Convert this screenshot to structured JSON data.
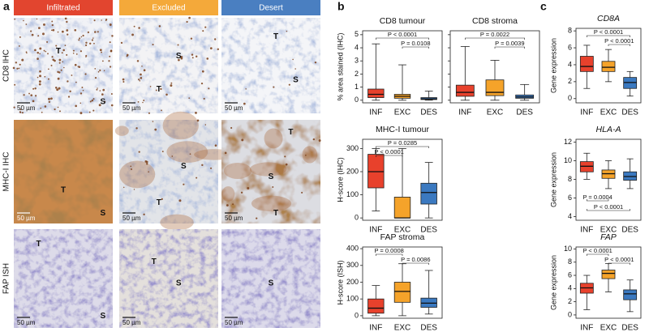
{
  "panel_labels": [
    "a",
    "b",
    "c"
  ],
  "histology": {
    "columns": [
      {
        "label": "Infiltrated",
        "color": "#e2452f"
      },
      {
        "label": "Excluded",
        "color": "#f4a93a"
      },
      {
        "label": "Desert",
        "color": "#4a7fc1"
      }
    ],
    "rows": [
      "CD8 IHC",
      "MHC-I IHC",
      "FAP ISH"
    ],
    "scale_bar": "50 µm",
    "images": [
      [
        [
          "T",
          "S"
        ],
        [
          "S",
          "T"
        ],
        [
          "T",
          "S"
        ]
      ],
      [
        [
          "T",
          "S"
        ],
        [
          "S",
          "T"
        ],
        [
          "T",
          "S",
          "T"
        ]
      ],
      [
        [
          "T",
          "S"
        ],
        [
          "T",
          "S"
        ],
        [
          "S"
        ]
      ]
    ]
  },
  "chart_data": [
    {
      "type": "box",
      "title": "CD8 tumour",
      "y_label": "% area stained (IHC)",
      "categories": [
        "INF",
        "EXC",
        "DES"
      ],
      "colors": [
        "#e8412c",
        "#f5a32a",
        "#3b79c0"
      ],
      "boxes": [
        {
          "min": 0,
          "q1": 0.2,
          "median": 0.45,
          "q3": 0.85,
          "max": 4.3
        },
        {
          "min": 0,
          "q1": 0.15,
          "median": 0.3,
          "q3": 0.45,
          "max": 2.7
        },
        {
          "min": 0,
          "q1": 0.05,
          "median": 0.1,
          "q3": 0.2,
          "max": 0.7
        }
      ],
      "ylim": [
        -0.2,
        5.3
      ],
      "yticks": [
        0,
        1,
        2,
        3,
        4,
        5
      ],
      "annotation_side": "top",
      "annotations": [
        {
          "text": "P < 0.0001",
          "from": 0,
          "to": 2
        },
        {
          "text": "P = 0.0108",
          "from": 1,
          "to": 2
        }
      ]
    },
    {
      "type": "box",
      "title": "CD8 stroma",
      "categories": [
        "INF",
        "EXC",
        "DES"
      ],
      "colors": [
        "#e8412c",
        "#f5a32a",
        "#3b79c0"
      ],
      "boxes": [
        {
          "min": 0,
          "q1": 0.3,
          "median": 0.6,
          "q3": 1.15,
          "max": 4.1
        },
        {
          "min": 0,
          "q1": 0.35,
          "median": 0.6,
          "q3": 1.55,
          "max": 3.05
        },
        {
          "min": 0,
          "q1": 0.15,
          "median": 0.25,
          "q3": 0.4,
          "max": 1.2
        }
      ],
      "ylim": [
        -0.2,
        5.3
      ],
      "yticks": [
        0,
        1,
        2,
        3,
        4,
        5
      ],
      "tick_labels": false,
      "annotation_side": "top",
      "annotations": [
        {
          "text": "P = 0.0022",
          "from": 0,
          "to": 2
        },
        {
          "text": "P = 0.0039",
          "from": 1,
          "to": 2
        }
      ]
    },
    {
      "type": "box",
      "title": "MHC-I tumour",
      "y_label": "H-score (IHC)",
      "categories": [
        "INF",
        "EXC",
        "DES"
      ],
      "colors": [
        "#e8412c",
        "#f5a32a",
        "#3b79c0"
      ],
      "boxes": [
        {
          "min": 30,
          "q1": 130,
          "median": 200,
          "q3": 275,
          "max": 300
        },
        {
          "min": 0,
          "q1": 0,
          "median": 0,
          "q3": 90,
          "max": 300
        },
        {
          "min": 0,
          "q1": 60,
          "median": 110,
          "q3": 150,
          "max": 240
        }
      ],
      "ylim": [
        -10,
        340
      ],
      "yticks": [
        0,
        100,
        200,
        300
      ],
      "annotation_side": "top",
      "annotations": [
        {
          "text": "P = 0.0285",
          "from": 0,
          "to": 2
        },
        {
          "text": "P < 0.0001",
          "from": 0,
          "to": 1
        }
      ]
    },
    {
      "type": "box",
      "title": "FAP stroma",
      "y_label": "H-score (ISH)",
      "categories": [
        "INF",
        "EXC",
        "DES"
      ],
      "colors": [
        "#e8412c",
        "#f5a32a",
        "#3b79c0"
      ],
      "boxes": [
        {
          "min": 0,
          "q1": 15,
          "median": 45,
          "q3": 100,
          "max": 180
        },
        {
          "min": 0,
          "q1": 80,
          "median": 145,
          "q3": 200,
          "max": 310
        },
        {
          "min": 10,
          "q1": 50,
          "median": 75,
          "q3": 105,
          "max": 270
        }
      ],
      "ylim": [
        -15,
        410
      ],
      "yticks": [
        0,
        100,
        200,
        300,
        400
      ],
      "annotation_side": "top",
      "annotations": [
        {
          "text": "P = 0.0008",
          "from": 0,
          "to": 1
        },
        {
          "text": "P = 0.0086",
          "from": 1,
          "to": 2
        }
      ]
    },
    {
      "type": "box",
      "title": "CD8A",
      "title_style": "italic",
      "y_label": "Gene expression",
      "categories": [
        "INF",
        "EXC",
        "DES"
      ],
      "colors": [
        "#e8412c",
        "#f5a32a",
        "#3b79c0"
      ],
      "boxes": [
        {
          "min": 1.2,
          "q1": 3.2,
          "median": 3.8,
          "q3": 5.0,
          "max": 6.3
        },
        {
          "min": 2.0,
          "q1": 3.2,
          "median": 3.7,
          "q3": 4.4,
          "max": 5.8
        },
        {
          "min": 0.3,
          "q1": 1.2,
          "median": 1.9,
          "q3": 2.5,
          "max": 3.2
        }
      ],
      "ylim": [
        -0.5,
        8.3
      ],
      "yticks": [
        0,
        2,
        4,
        6,
        8
      ],
      "annotation_side": "top",
      "annotations": [
        {
          "text": "P < 0.0001",
          "from": 0,
          "to": 2
        },
        {
          "text": "P < 0.0001",
          "from": 1,
          "to": 2
        }
      ]
    },
    {
      "type": "box",
      "title": "HLA-A",
      "title_style": "italic",
      "y_label": "Gene expression",
      "categories": [
        "INF",
        "EXC",
        "DES"
      ],
      "colors": [
        "#e8412c",
        "#f5a32a",
        "#3b79c0"
      ],
      "boxes": [
        {
          "min": 8,
          "q1": 8.8,
          "median": 9.4,
          "q3": 9.9,
          "max": 10.8
        },
        {
          "min": 7,
          "q1": 8.1,
          "median": 8.6,
          "q3": 9.0,
          "max": 10
        },
        {
          "min": 7,
          "q1": 7.9,
          "median": 8.3,
          "q3": 8.8,
          "max": 10.2
        }
      ],
      "ylim": [
        3.6,
        12.3
      ],
      "yticks": [
        4,
        6,
        8,
        10,
        12
      ],
      "annotation_side": "bottom",
      "annotations": [
        {
          "text": "P = 0.0004",
          "from": 0,
          "to": 1
        },
        {
          "text": "P < 0.0001",
          "from": 0,
          "to": 2
        }
      ]
    },
    {
      "type": "box",
      "title": "FAP",
      "title_style": "italic",
      "y_label": "Gene expression",
      "categories": [
        "INF",
        "EXC",
        "DES"
      ],
      "colors": [
        "#e8412c",
        "#f5a32a",
        "#3b79c0"
      ],
      "boxes": [
        {
          "min": 0.8,
          "q1": 3.3,
          "median": 4.1,
          "q3": 4.8,
          "max": 6.0
        },
        {
          "min": 3.5,
          "q1": 5.5,
          "median": 6.3,
          "q3": 6.8,
          "max": 7.8
        },
        {
          "min": 0.5,
          "q1": 2.3,
          "median": 3.2,
          "q3": 3.8,
          "max": 5.3
        }
      ],
      "ylim": [
        -0.5,
        10.3
      ],
      "yticks": [
        0,
        2,
        4,
        6,
        8,
        10
      ],
      "annotation_side": "top",
      "annotations": [
        {
          "text": "P < 0.0001",
          "from": 0,
          "to": 1
        },
        {
          "text": "P < 0.0001",
          "from": 1,
          "to": 2
        }
      ]
    }
  ]
}
